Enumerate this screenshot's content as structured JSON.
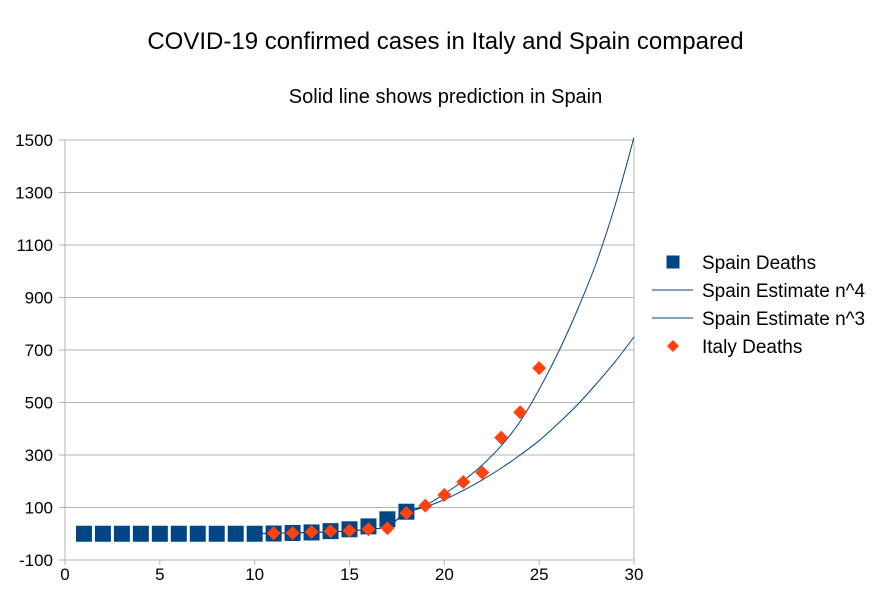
{
  "chart_data": {
    "type": "scatter",
    "title": "COVID-19 confirmed cases in Italy and Spain compared",
    "subtitle": "Solid line shows prediction in Spain",
    "xlabel": "",
    "ylabel": "",
    "xlim": [
      0,
      30
    ],
    "ylim": [
      -100,
      1500
    ],
    "x_ticks": [
      0,
      5,
      10,
      15,
      20,
      25,
      30
    ],
    "y_ticks": [
      -100,
      100,
      300,
      500,
      700,
      900,
      1100,
      1300,
      1500
    ],
    "grid": "horizontal",
    "legend_position": "right",
    "series": [
      {
        "name": "Spain Deaths",
        "kind": "marker",
        "marker": "square",
        "color": "#004586",
        "points": [
          [
            1,
            0
          ],
          [
            2,
            0
          ],
          [
            3,
            0
          ],
          [
            4,
            0
          ],
          [
            5,
            0
          ],
          [
            6,
            0
          ],
          [
            7,
            0
          ],
          [
            8,
            0
          ],
          [
            9,
            0
          ],
          [
            10,
            0
          ],
          [
            11,
            1
          ],
          [
            12,
            3
          ],
          [
            13,
            5
          ],
          [
            14,
            10
          ],
          [
            15,
            17
          ],
          [
            16,
            28
          ],
          [
            17,
            55
          ],
          [
            18,
            84
          ]
        ]
      },
      {
        "name": "Spain Estimate n^4",
        "kind": "line",
        "color": "#004586",
        "points": [
          [
            10,
            1
          ],
          [
            11,
            2
          ],
          [
            12,
            3
          ],
          [
            13,
            5
          ],
          [
            14,
            7
          ],
          [
            15,
            11
          ],
          [
            16,
            17
          ],
          [
            17,
            28
          ],
          [
            18,
            82
          ],
          [
            19,
            108
          ],
          [
            20,
            152
          ],
          [
            21,
            202
          ],
          [
            22,
            262
          ],
          [
            23,
            335
          ],
          [
            24,
            428
          ],
          [
            25,
            550
          ],
          [
            26,
            690
          ],
          [
            27,
            850
          ],
          [
            28,
            1030
          ],
          [
            29,
            1250
          ],
          [
            30,
            1510
          ]
        ]
      },
      {
        "name": "Spain Estimate n^3",
        "kind": "line",
        "color": "#004586",
        "points": [
          [
            10,
            1
          ],
          [
            11,
            2
          ],
          [
            12,
            3
          ],
          [
            13,
            5
          ],
          [
            14,
            7
          ],
          [
            15,
            11
          ],
          [
            16,
            17
          ],
          [
            17,
            28
          ],
          [
            18,
            80
          ],
          [
            19,
            102
          ],
          [
            20,
            130
          ],
          [
            21,
            165
          ],
          [
            22,
            205
          ],
          [
            23,
            250
          ],
          [
            24,
            300
          ],
          [
            25,
            355
          ],
          [
            26,
            420
          ],
          [
            27,
            490
          ],
          [
            28,
            570
          ],
          [
            29,
            655
          ],
          [
            30,
            750
          ]
        ]
      },
      {
        "name": "Italy Deaths",
        "kind": "marker",
        "marker": "diamond",
        "color": "#ff420e",
        "points": [
          [
            11,
            2
          ],
          [
            12,
            3
          ],
          [
            13,
            7
          ],
          [
            14,
            10
          ],
          [
            15,
            12
          ],
          [
            16,
            17
          ],
          [
            17,
            21
          ],
          [
            18,
            79
          ],
          [
            19,
            107
          ],
          [
            20,
            148
          ],
          [
            21,
            197
          ],
          [
            22,
            233
          ],
          [
            23,
            366
          ],
          [
            24,
            463
          ],
          [
            25,
            631
          ]
        ]
      }
    ]
  }
}
